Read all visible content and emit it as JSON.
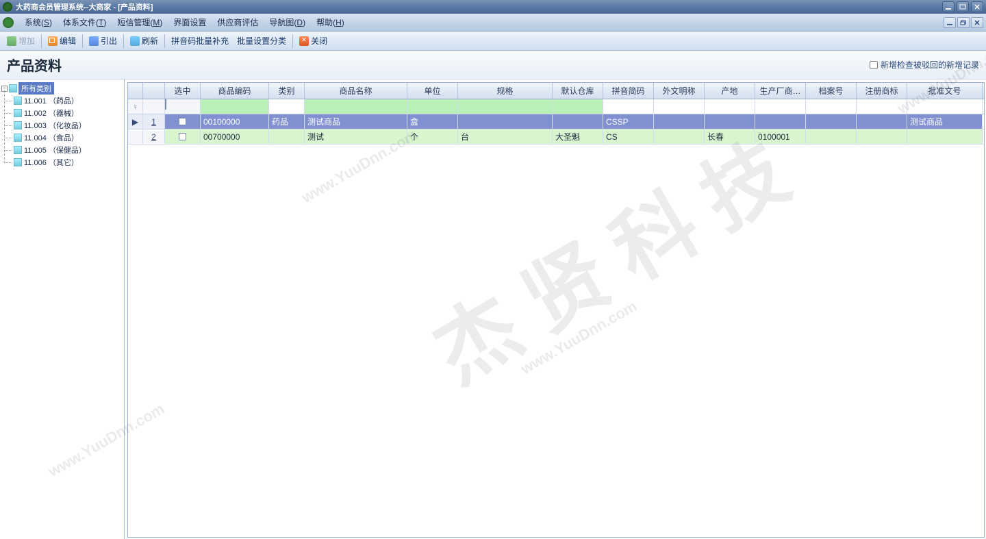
{
  "window": {
    "title": "大药商会员管理系统--大商家 - [产品资料]"
  },
  "menubar": {
    "items": [
      {
        "label": "系统(",
        "mnemonic": "S",
        "tail": ")"
      },
      {
        "label": "体系文件(",
        "mnemonic": "T",
        "tail": ")"
      },
      {
        "label": "短信管理(",
        "mnemonic": "M",
        "tail": ")"
      },
      {
        "label": "界面设置",
        "mnemonic": "",
        "tail": ""
      },
      {
        "label": "供应商评估",
        "mnemonic": "",
        "tail": ""
      },
      {
        "label": "导航图(",
        "mnemonic": "D",
        "tail": ")"
      },
      {
        "label": "帮助(",
        "mnemonic": "H",
        "tail": ")"
      }
    ]
  },
  "toolbar": {
    "add": "增加",
    "edit": "编辑",
    "export": "引出",
    "refresh": "刷新",
    "py": "拼音码批量补充",
    "batch": "批量设置分类",
    "close": "关闭"
  },
  "page": {
    "title": "产品资料",
    "checkbox_label": "新增检查被驳回的新增记录"
  },
  "tree": {
    "root": "所有类别",
    "items": [
      "11.001 （药品）",
      "11.002 （器械）",
      "11.003 （化妆品）",
      "11.004 （食品）",
      "11.005 （保健品）",
      "11.006 （其它）"
    ]
  },
  "grid": {
    "columns": [
      "",
      "",
      "选中",
      "商品编码",
      "类别",
      "商品名称",
      "单位",
      "规格",
      "默认仓库",
      "拼音简码",
      "外文明称",
      "产地",
      "生产厂商…",
      "档案号",
      "注册商标",
      "批准文号"
    ],
    "rows": [
      {
        "num": "1",
        "selected": true,
        "code": "00100000",
        "cat": "药品",
        "name": "测试商品",
        "unit": "盒",
        "spec": "",
        "wh": "",
        "py": "CSSP",
        "fname": "",
        "origin": "",
        "mfr": "",
        "arch": "",
        "tm": "",
        "appr": "测试商品"
      },
      {
        "num": "2",
        "selected": false,
        "code": "00700000",
        "cat": "",
        "name": "测试",
        "unit": "个",
        "spec": "台",
        "wh": "大圣魁",
        "py": "CS",
        "fname": "",
        "origin": "长春",
        "mfr": "0100001",
        "arch": "",
        "tm": "",
        "appr": ""
      }
    ]
  },
  "watermark": {
    "main": "杰贤科技",
    "url": "www.YuuDnn.com"
  }
}
